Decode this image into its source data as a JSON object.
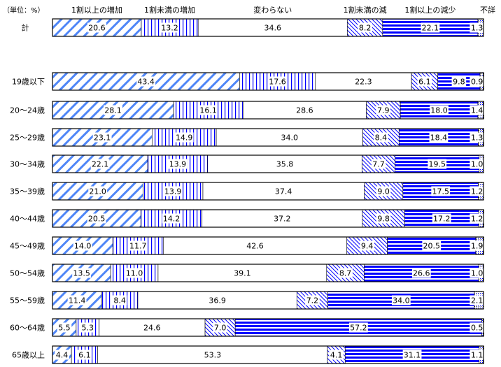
{
  "chart_data": {
    "type": "bar",
    "orientation": "horizontal",
    "stacked": true,
    "unit_label": "（単位：%）",
    "xlim": [
      0,
      100
    ],
    "legend": [
      "1割以上の増加",
      "1割未満の増加",
      "変わらない",
      "1割未満の減",
      "1割以上の減少",
      "不詳"
    ],
    "categories": [
      "計",
      "19歳以下",
      "20～24歳",
      "25～29歳",
      "30～34歳",
      "35～39歳",
      "40～44歳",
      "45～49歳",
      "50～54歳",
      "55～59歳",
      "60～64歳",
      "65歳以上"
    ],
    "rows": [
      [
        20.6,
        13.2,
        34.6,
        8.2,
        22.1,
        1.3
      ],
      [
        43.4,
        17.6,
        22.3,
        6.1,
        9.8,
        0.9
      ],
      [
        28.1,
        16.1,
        28.6,
        7.9,
        18.0,
        1.4
      ],
      [
        23.1,
        14.9,
        34.0,
        8.4,
        18.4,
        1.3
      ],
      [
        22.1,
        13.9,
        35.8,
        7.7,
        19.5,
        1.0
      ],
      [
        21.0,
        13.9,
        37.4,
        9.0,
        17.5,
        1.2
      ],
      [
        20.5,
        14.2,
        37.2,
        9.8,
        17.2,
        1.2
      ],
      [
        14.0,
        11.7,
        42.6,
        9.4,
        20.5,
        1.9
      ],
      [
        13.5,
        11.0,
        39.1,
        8.7,
        26.6,
        1.0
      ],
      [
        11.4,
        8.4,
        36.9,
        7.2,
        34.0,
        2.1
      ],
      [
        5.5,
        5.3,
        24.6,
        7.0,
        57.2,
        0.5
      ],
      [
        4.4,
        6.1,
        53.3,
        4.1,
        31.1,
        1.1
      ]
    ],
    "colors": {
      "light_blue": "#4f86f7",
      "blue": "#0000ff"
    }
  }
}
